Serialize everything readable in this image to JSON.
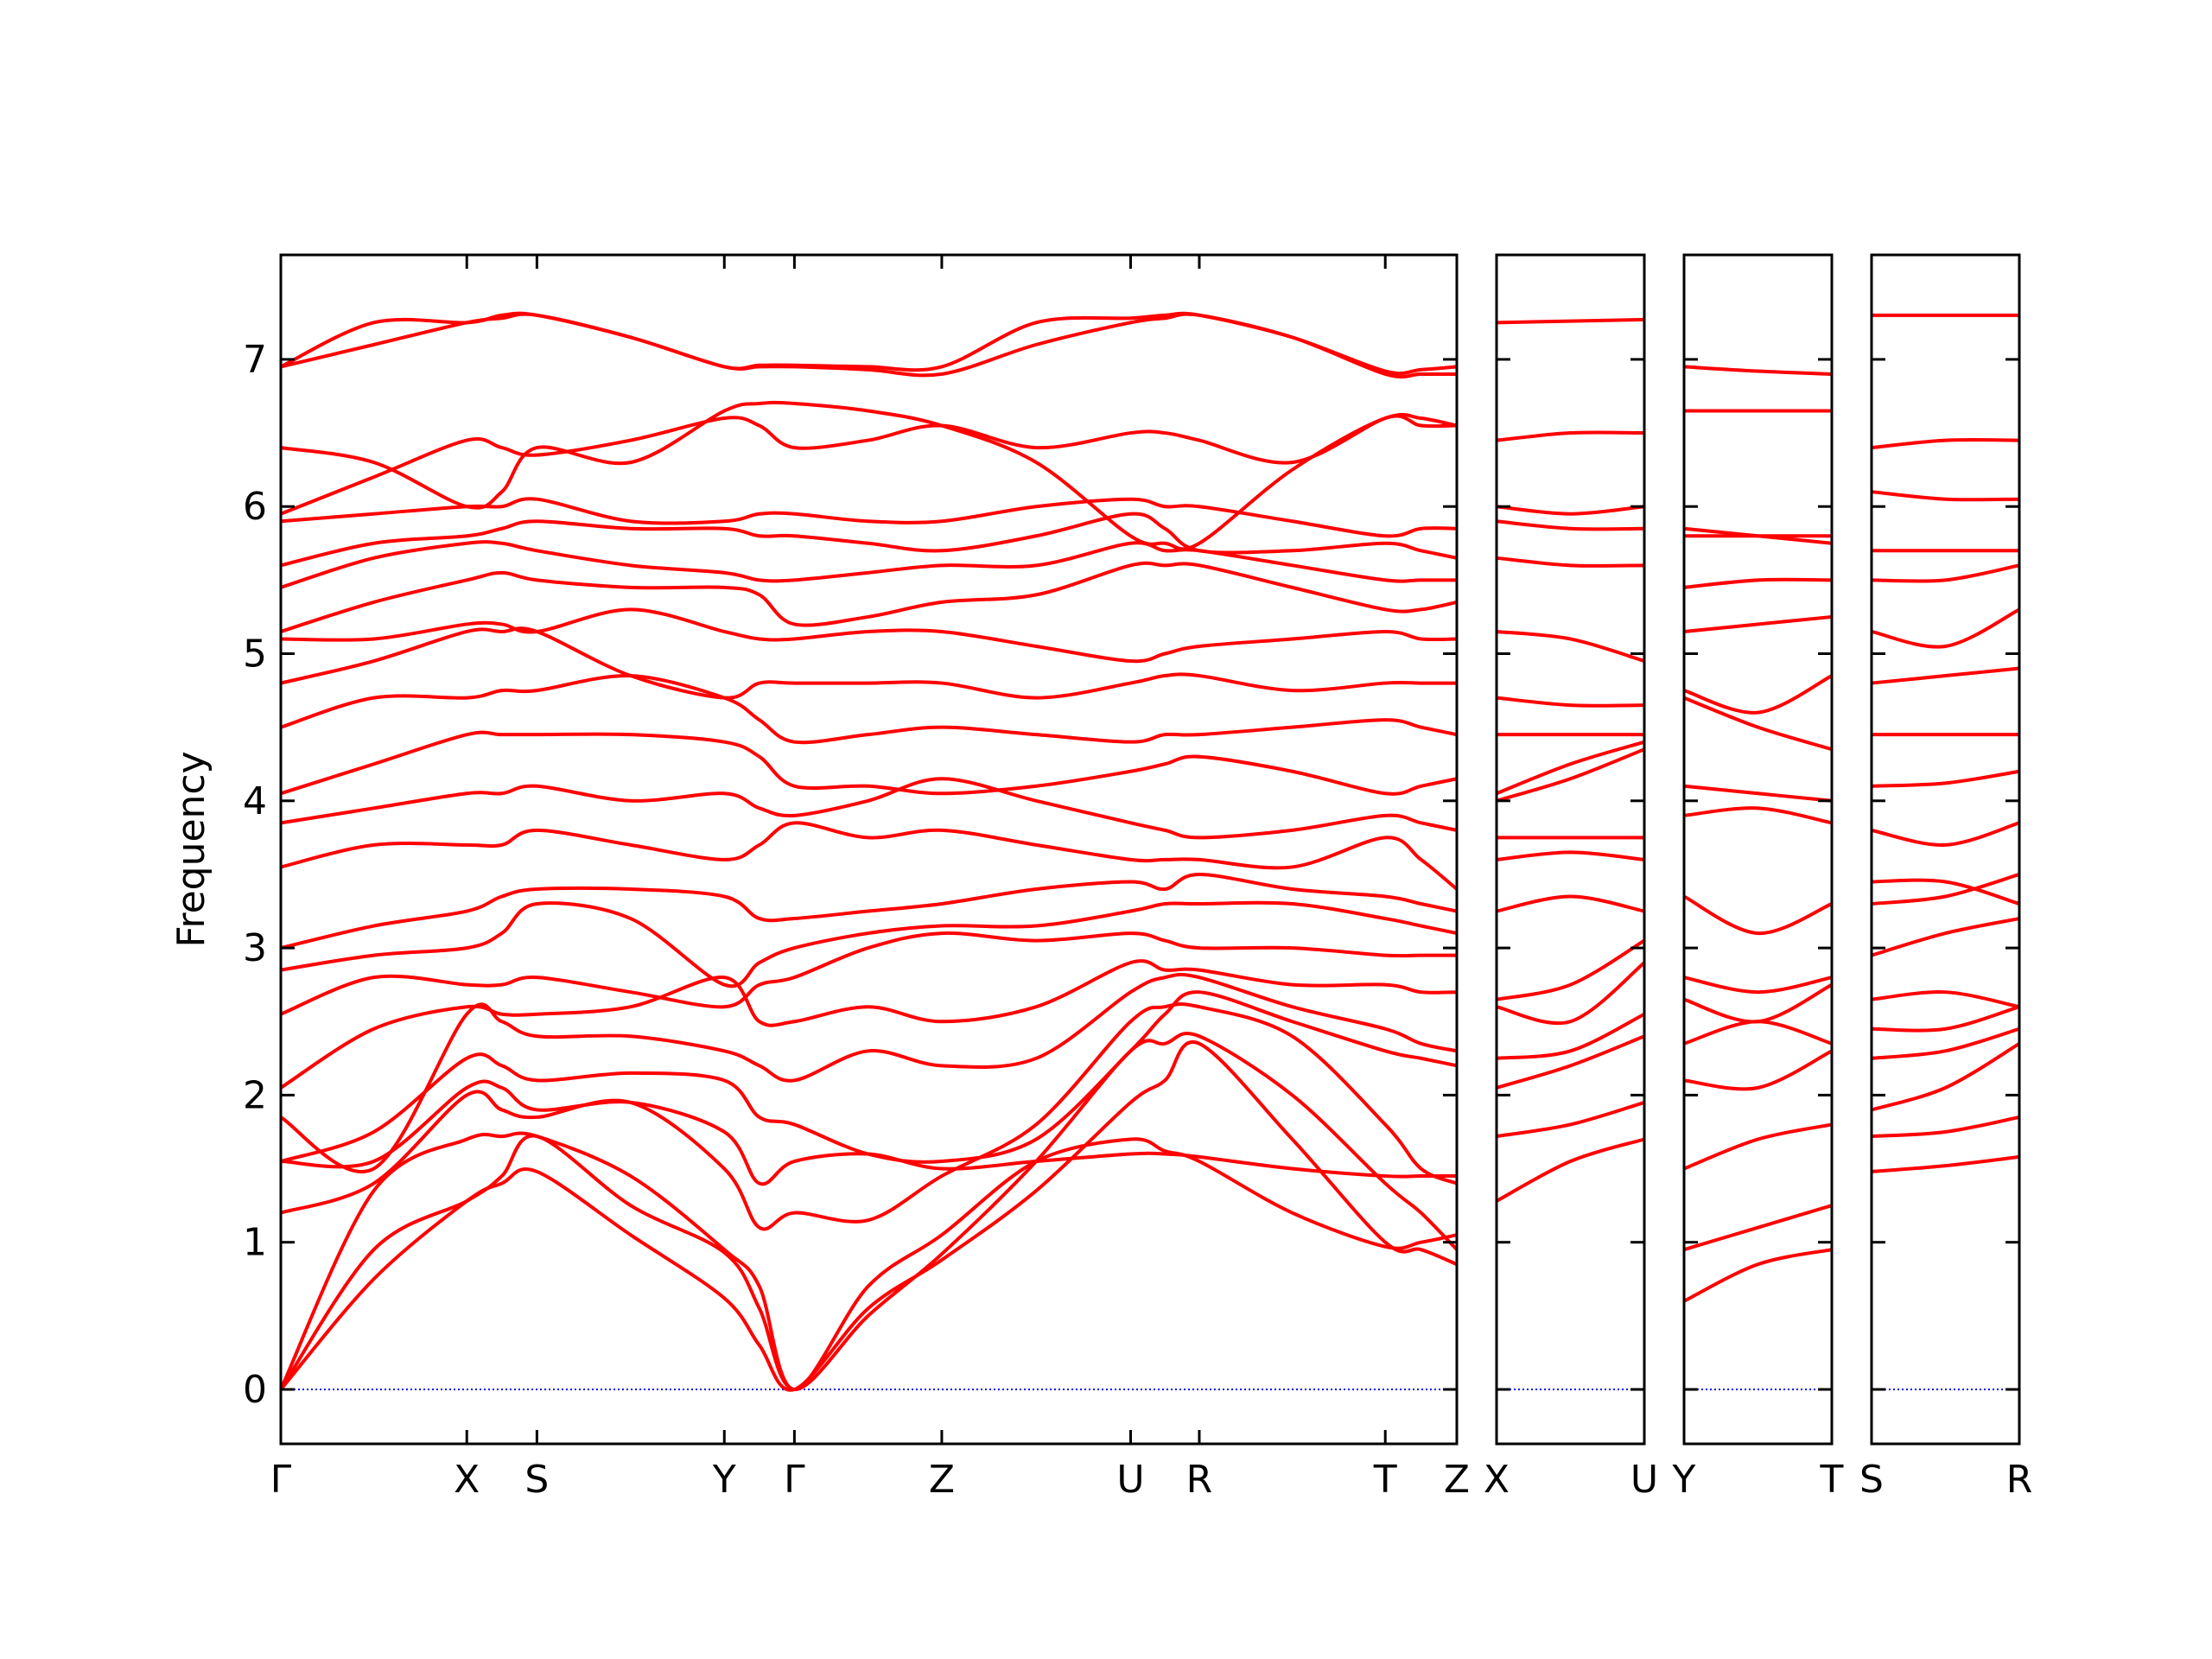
{
  "chart_data": [
    {
      "type": "line",
      "ylabel": "Frequency",
      "color": "#ff0000",
      "zero_line_color": "#0000ff",
      "xlim": [
        0,
        8.22
      ],
      "ylim": [
        -0.37,
        7.71
      ],
      "yticks": [
        0,
        1,
        2,
        3,
        4,
        5,
        6,
        7
      ],
      "xticks": [
        {
          "value": 0,
          "label": "Γ"
        },
        {
          "value": 1.3,
          "label": "X"
        },
        {
          "value": 1.79,
          "label": "S"
        },
        {
          "value": 3.1,
          "label": "Y"
        },
        {
          "value": 3.59,
          "label": "Γ"
        },
        {
          "value": 4.62,
          "label": "Z"
        },
        {
          "value": 5.94,
          "label": "U"
        },
        {
          "value": 6.42,
          "label": "R"
        },
        {
          "value": 7.72,
          "label": "T"
        },
        {
          "value": 8.22,
          "label": "Z"
        }
      ],
      "x": [
        0,
        0.65,
        1.3,
        1.545,
        1.79,
        2.445,
        3.1,
        3.345,
        3.59,
        4.105,
        4.62,
        5.28,
        5.94,
        6.18,
        6.42,
        7.07,
        7.72,
        7.97,
        8.22
      ],
      "series": [
        {
          "values": [
            0,
            0.75,
            1.28,
            1.4,
            1.48,
            1.05,
            0.62,
            0.3,
            0,
            0.55,
            0.88,
            1.35,
            1.95,
            2.1,
            2.35,
            1.7,
            1.0,
            0.95,
            0.85
          ]
        },
        {
          "values": [
            0,
            0.95,
            1.28,
            1.45,
            1.72,
            1.25,
            0.93,
            0.55,
            0,
            0.5,
            0.92,
            1.55,
            2.3,
            2.35,
            2.4,
            2.0,
            1.4,
            1.2,
            0.95
          ]
        },
        {
          "values": [
            0,
            1.35,
            1.7,
            1.72,
            1.72,
            1.45,
            0.95,
            0.7,
            0,
            0.7,
            1.05,
            1.55,
            1.7,
            1.62,
            1.55,
            1.2,
            0.97,
            1.0,
            1.05
          ]
        },
        {
          "values": [
            1.2,
            1.4,
            2.0,
            1.9,
            1.85,
            1.95,
            1.5,
            1.1,
            1.2,
            1.15,
            1.45,
            1.8,
            2.5,
            2.6,
            2.6,
            2.4,
            1.8,
            1.5,
            1.4
          ]
        },
        {
          "values": [
            1.55,
            1.55,
            2.05,
            2.05,
            1.9,
            1.95,
            1.75,
            1.4,
            1.55,
            1.6,
            1.5,
            1.55,
            1.6,
            1.6,
            1.58,
            1.5,
            1.45,
            1.45,
            1.45
          ]
        },
        {
          "values": [
            1.55,
            1.75,
            2.25,
            2.2,
            2.1,
            2.15,
            2.1,
            1.85,
            1.8,
            1.6,
            1.55,
            1.7,
            2.3,
            2.55,
            2.7,
            2.5,
            2.3,
            2.25,
            2.2
          ]
        },
        {
          "values": [
            1.85,
            1.5,
            2.55,
            2.5,
            2.4,
            2.4,
            2.3,
            2.2,
            2.1,
            2.3,
            2.2,
            2.25,
            2.7,
            2.8,
            2.8,
            2.6,
            2.45,
            2.35,
            2.3
          ]
        },
        {
          "values": [
            2.05,
            2.45,
            2.6,
            2.55,
            2.55,
            2.6,
            2.8,
            2.5,
            2.5,
            2.6,
            2.5,
            2.6,
            2.9,
            2.85,
            2.85,
            2.75,
            2.75,
            2.7,
            2.7
          ]
        },
        {
          "values": [
            2.55,
            2.8,
            2.75,
            2.75,
            2.8,
            2.7,
            2.6,
            2.75,
            2.8,
            3.0,
            3.1,
            3.05,
            3.1,
            3.05,
            3.0,
            3.0,
            2.95,
            2.95,
            2.95
          ]
        },
        {
          "values": [
            2.85,
            2.95,
            3.0,
            3.1,
            3.3,
            3.2,
            2.75,
            2.9,
            3.0,
            3.1,
            3.15,
            3.15,
            3.25,
            3.3,
            3.3,
            3.3,
            3.2,
            3.15,
            3.1
          ]
        },
        {
          "values": [
            3.0,
            3.15,
            3.25,
            3.35,
            3.4,
            3.4,
            3.35,
            3.2,
            3.2,
            3.25,
            3.3,
            3.4,
            3.45,
            3.4,
            3.5,
            3.4,
            3.35,
            3.3,
            3.25
          ]
        },
        {
          "values": [
            3.55,
            3.7,
            3.7,
            3.7,
            3.8,
            3.7,
            3.6,
            3.7,
            3.85,
            3.75,
            3.8,
            3.7,
            3.6,
            3.6,
            3.6,
            3.55,
            3.75,
            3.6,
            3.4
          ]
        },
        {
          "values": [
            3.85,
            3.95,
            4.05,
            4.05,
            4.1,
            4.0,
            4.05,
            3.95,
            3.9,
            4.0,
            4.15,
            4.0,
            3.85,
            3.8,
            3.75,
            3.8,
            3.9,
            3.85,
            3.8
          ]
        },
        {
          "values": [
            4.05,
            4.25,
            4.45,
            4.45,
            4.45,
            4.45,
            4.4,
            4.3,
            4.1,
            4.1,
            4.05,
            4.1,
            4.2,
            4.25,
            4.3,
            4.2,
            4.05,
            4.1,
            4.15
          ]
        },
        {
          "values": [
            4.5,
            4.7,
            4.7,
            4.75,
            4.75,
            4.85,
            4.7,
            4.55,
            4.4,
            4.45,
            4.5,
            4.45,
            4.4,
            4.45,
            4.45,
            4.5,
            4.55,
            4.5,
            4.45
          ]
        },
        {
          "values": [
            4.8,
            4.95,
            5.15,
            5.15,
            5.15,
            4.85,
            4.7,
            4.8,
            4.8,
            4.8,
            4.8,
            4.7,
            4.8,
            4.85,
            4.85,
            4.75,
            4.8,
            4.8,
            4.8
          ]
        },
        {
          "values": [
            5.1,
            5.1,
            5.2,
            5.2,
            5.15,
            5.3,
            5.15,
            5.1,
            5.1,
            5.15,
            5.15,
            5.05,
            4.95,
            5.0,
            5.05,
            5.1,
            5.15,
            5.1,
            5.1
          ]
        },
        {
          "values": [
            5.15,
            5.35,
            5.5,
            5.55,
            5.5,
            5.45,
            5.45,
            5.4,
            5.2,
            5.25,
            5.35,
            5.4,
            5.6,
            5.6,
            5.6,
            5.45,
            5.3,
            5.3,
            5.35
          ]
        },
        {
          "values": [
            5.45,
            5.65,
            5.75,
            5.75,
            5.7,
            5.6,
            5.55,
            5.5,
            5.5,
            5.55,
            5.6,
            5.6,
            5.75,
            5.7,
            5.7,
            5.6,
            5.5,
            5.5,
            5.5
          ]
        },
        {
          "values": [
            5.6,
            5.75,
            5.8,
            5.85,
            5.9,
            5.85,
            5.85,
            5.8,
            5.8,
            5.75,
            5.7,
            5.8,
            5.95,
            5.85,
            5.7,
            5.7,
            5.75,
            5.7,
            5.65
          ]
        },
        {
          "values": [
            5.9,
            5.95,
            6.0,
            6.0,
            6.05,
            5.9,
            5.9,
            5.95,
            5.95,
            5.9,
            5.9,
            6.0,
            6.05,
            6.0,
            6.0,
            5.9,
            5.8,
            5.85,
            5.85
          ]
        },
        {
          "values": [
            5.95,
            6.2,
            6.45,
            6.4,
            6.35,
            6.45,
            6.6,
            6.55,
            6.4,
            6.45,
            6.55,
            6.4,
            6.5,
            6.5,
            6.45,
            6.3,
            6.6,
            6.6,
            6.55
          ]
        },
        {
          "values": [
            6.4,
            6.3,
            6.0,
            6.1,
            6.4,
            6.3,
            6.65,
            6.7,
            6.7,
            6.65,
            6.55,
            6.3,
            5.8,
            5.75,
            5.75,
            6.25,
            6.6,
            6.55,
            6.55
          ]
        },
        {
          "values": [
            6.95,
            7.1,
            7.25,
            7.28,
            7.3,
            7.15,
            6.95,
            6.95,
            6.95,
            6.93,
            6.9,
            7.1,
            7.25,
            7.28,
            7.3,
            7.15,
            6.9,
            6.9,
            6.9
          ]
        },
        {
          "values": [
            6.95,
            7.25,
            7.25,
            7.3,
            7.3,
            7.15,
            6.95,
            6.96,
            6.96,
            6.95,
            6.95,
            7.25,
            7.28,
            7.3,
            7.3,
            7.15,
            6.92,
            6.93,
            6.95
          ]
        }
      ]
    },
    {
      "type": "line",
      "color": "#ff0000",
      "zero_line_color": "#0000ff",
      "ytick_labels": false,
      "xlim": [
        0,
        1.03
      ],
      "ylim": [
        -0.37,
        7.71
      ],
      "yticks": [
        0,
        1,
        2,
        3,
        4,
        5,
        6,
        7
      ],
      "xticks": [
        {
          "value": 0,
          "label": "X"
        },
        {
          "value": 1.03,
          "label": "U"
        }
      ],
      "x": [
        0,
        0.515,
        1.03
      ],
      "series": [
        {
          "values": [
            1.28,
            1.55,
            1.7
          ]
        },
        {
          "values": [
            1.72,
            1.8,
            1.95
          ]
        },
        {
          "values": [
            2.05,
            2.2,
            2.4
          ]
        },
        {
          "values": [
            2.25,
            2.3,
            2.55
          ]
        },
        {
          "values": [
            2.6,
            2.5,
            2.9
          ]
        },
        {
          "values": [
            2.65,
            2.75,
            3.05
          ]
        },
        {
          "values": [
            3.25,
            3.35,
            3.25
          ]
        },
        {
          "values": [
            3.6,
            3.65,
            3.6
          ]
        },
        {
          "values": [
            3.75,
            3.75,
            3.75
          ]
        },
        {
          "values": [
            4.0,
            4.15,
            4.35
          ]
        },
        {
          "values": [
            4.05,
            4.25,
            4.4
          ]
        },
        {
          "values": [
            4.45,
            4.45,
            4.45
          ]
        },
        {
          "values": [
            4.7,
            4.65,
            4.65
          ]
        },
        {
          "values": [
            5.15,
            5.1,
            4.95
          ]
        },
        {
          "values": [
            5.65,
            5.6,
            5.6
          ]
        },
        {
          "values": [
            5.9,
            5.85,
            5.85
          ]
        },
        {
          "values": [
            6.0,
            5.95,
            6.0
          ]
        },
        {
          "values": [
            6.45,
            6.5,
            6.5
          ]
        },
        {
          "values": [
            7.25,
            7.26,
            7.27
          ]
        }
      ]
    },
    {
      "type": "line",
      "color": "#ff0000",
      "zero_line_color": "#0000ff",
      "ytick_labels": false,
      "xlim": [
        0,
        1.03
      ],
      "ylim": [
        -0.37,
        7.71
      ],
      "yticks": [
        0,
        1,
        2,
        3,
        4,
        5,
        6,
        7
      ],
      "xticks": [
        {
          "value": 0,
          "label": "Y"
        },
        {
          "value": 1.03,
          "label": "T"
        }
      ],
      "x": [
        0,
        0.515,
        1.03
      ],
      "series": [
        {
          "values": [
            0.6,
            0.85,
            0.95
          ]
        },
        {
          "values": [
            0.95,
            1.1,
            1.25
          ]
        },
        {
          "values": [
            1.5,
            1.7,
            1.8
          ]
        },
        {
          "values": [
            2.1,
            2.05,
            2.3
          ]
        },
        {
          "values": [
            2.35,
            2.5,
            2.35
          ]
        },
        {
          "values": [
            2.65,
            2.5,
            2.75
          ]
        },
        {
          "values": [
            2.8,
            2.7,
            2.8
          ]
        },
        {
          "values": [
            3.35,
            3.1,
            3.3
          ]
        },
        {
          "values": [
            3.9,
            3.95,
            3.85
          ]
        },
        {
          "values": [
            4.1,
            4.05,
            4.0
          ]
        },
        {
          "values": [
            4.7,
            4.5,
            4.35
          ]
        },
        {
          "values": [
            4.75,
            4.6,
            4.85
          ]
        },
        {
          "values": [
            5.15,
            5.2,
            5.25
          ]
        },
        {
          "values": [
            5.45,
            5.5,
            5.5
          ]
        },
        {
          "values": [
            5.8,
            5.8,
            5.8
          ]
        },
        {
          "values": [
            5.85,
            5.8,
            5.75
          ]
        },
        {
          "values": [
            6.65,
            6.65,
            6.65
          ]
        },
        {
          "values": [
            6.95,
            6.92,
            6.9
          ]
        }
      ]
    },
    {
      "type": "line",
      "color": "#ff0000",
      "zero_line_color": "#0000ff",
      "ytick_labels": false,
      "xlim": [
        0,
        1.03
      ],
      "ylim": [
        -0.37,
        7.71
      ],
      "yticks": [
        0,
        1,
        2,
        3,
        4,
        5,
        6,
        7
      ],
      "xticks": [
        {
          "value": 0,
          "label": "S"
        },
        {
          "value": 1.03,
          "label": "R"
        }
      ],
      "x": [
        0,
        0.515,
        1.03
      ],
      "series": [
        {
          "values": [
            1.48,
            1.52,
            1.58
          ]
        },
        {
          "values": [
            1.72,
            1.75,
            1.85
          ]
        },
        {
          "values": [
            1.9,
            2.05,
            2.35
          ]
        },
        {
          "values": [
            2.25,
            2.3,
            2.45
          ]
        },
        {
          "values": [
            2.45,
            2.45,
            2.6
          ]
        },
        {
          "values": [
            2.65,
            2.7,
            2.6
          ]
        },
        {
          "values": [
            2.95,
            3.1,
            3.2
          ]
        },
        {
          "values": [
            3.3,
            3.35,
            3.5
          ]
        },
        {
          "values": [
            3.45,
            3.45,
            3.3
          ]
        },
        {
          "values": [
            3.8,
            3.7,
            3.85
          ]
        },
        {
          "values": [
            4.1,
            4.12,
            4.2
          ]
        },
        {
          "values": [
            4.45,
            4.45,
            4.45
          ]
        },
        {
          "values": [
            4.8,
            4.85,
            4.9
          ]
        },
        {
          "values": [
            5.15,
            5.05,
            5.3
          ]
        },
        {
          "values": [
            5.5,
            5.5,
            5.6
          ]
        },
        {
          "values": [
            5.7,
            5.7,
            5.7
          ]
        },
        {
          "values": [
            6.1,
            6.05,
            6.05
          ]
        },
        {
          "values": [
            6.4,
            6.45,
            6.45
          ]
        },
        {
          "values": [
            7.3,
            7.3,
            7.3
          ]
        }
      ]
    }
  ]
}
